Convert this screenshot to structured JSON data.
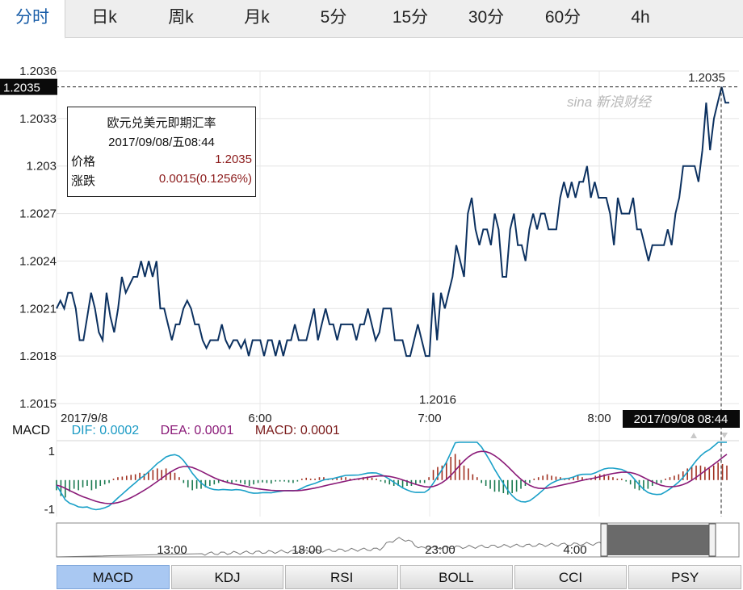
{
  "tabs": [
    {
      "label": "分时",
      "active": true
    },
    {
      "label": "日k"
    },
    {
      "label": "周k"
    },
    {
      "label": "月k"
    },
    {
      "label": "5分"
    },
    {
      "label": "15分"
    },
    {
      "label": "30分"
    },
    {
      "label": "60分"
    },
    {
      "label": "4h"
    }
  ],
  "watermark": "sina 新浪财经",
  "infobox": {
    "title": "欧元兑美元即期汇率",
    "time": "2017/09/08/五08:44",
    "price_label": "价格",
    "price_value": "1.2035",
    "change_label": "涨跌",
    "change_value": "0.0015(0.1256%)"
  },
  "macd_legend": {
    "macd": "MACD",
    "dif": "DIF: 0.0002",
    "dea": "DEA: 0.0001",
    "hist": "MACD: 0.0001"
  },
  "indicator_tabs": [
    {
      "label": "MACD",
      "active": true
    },
    {
      "label": "KDJ"
    },
    {
      "label": "RSI"
    },
    {
      "label": "BOLL"
    },
    {
      "label": "CCI"
    },
    {
      "label": "PSY"
    }
  ],
  "colors": {
    "line": "#0c3160",
    "dif": "#1aa0c8",
    "dea": "#8a1a78",
    "pos": "#a03020",
    "neg": "#1a7a50"
  },
  "chart_data": {
    "type": "line",
    "ylim": [
      1.2015,
      1.2036
    ],
    "ytick_labels": [
      "1.2036",
      "1.2033",
      "1.203",
      "1.2027",
      "1.2024",
      "1.2021",
      "1.2018",
      "1.2015"
    ],
    "xtick_labels": [
      "2017/9/8",
      "6:00",
      "7:00",
      "8:00"
    ],
    "crosshair_price": "1.2035",
    "crosshair_time": "2017/09/08 08:44",
    "high_label": "1.2035",
    "low_label": "1.2016",
    "series": [
      {
        "values": [
          1.2021,
          1.20215,
          1.2021,
          1.2022,
          1.2022,
          1.2021,
          1.2019,
          1.2019,
          1.20205,
          1.2022,
          1.2021,
          1.20195,
          1.2019,
          1.2022,
          1.20205,
          1.20195,
          1.2021,
          1.2023,
          1.2022,
          1.20225,
          1.2023,
          1.2023,
          1.2024,
          1.2023,
          1.2024,
          1.2023,
          1.2024,
          1.2021,
          1.2021,
          1.202,
          1.2019,
          1.202,
          1.202,
          1.2021,
          1.20215,
          1.2021,
          1.202,
          1.202,
          1.2019,
          1.20185,
          1.2019,
          1.2019,
          1.2019,
          1.202,
          1.2019,
          1.20185,
          1.2019,
          1.2019,
          1.20185,
          1.2019,
          1.2018,
          1.2019,
          1.2019,
          1.2019,
          1.2018,
          1.2019,
          1.2019,
          1.2018,
          1.2019,
          1.2018,
          1.2019,
          1.2019,
          1.202,
          1.2019,
          1.2019,
          1.2019,
          1.202,
          1.2021,
          1.2019,
          1.202,
          1.2021,
          1.202,
          1.202,
          1.2019,
          1.202,
          1.202,
          1.202,
          1.202,
          1.2019,
          1.202,
          1.202,
          1.2021,
          1.202,
          1.2019,
          1.20195,
          1.2021,
          1.2021,
          1.2021,
          1.2019,
          1.2019,
          1.2019,
          1.2018,
          1.2018,
          1.2019,
          1.202,
          1.2019,
          1.2018,
          1.2018,
          1.2022,
          1.2019,
          1.2022,
          1.2021,
          1.2022,
          1.2023,
          1.2025,
          1.2024,
          1.2023,
          1.2027,
          1.2028,
          1.2026,
          1.2025,
          1.2026,
          1.2026,
          1.2025,
          1.2027,
          1.2026,
          1.2023,
          1.2023,
          1.2026,
          1.2027,
          1.2025,
          1.2025,
          1.2024,
          1.2026,
          1.2027,
          1.2026,
          1.2027,
          1.2027,
          1.2026,
          1.2026,
          1.2026,
          1.2028,
          1.2029,
          1.2028,
          1.2029,
          1.2028,
          1.2029,
          1.2029,
          1.203,
          1.2028,
          1.2029,
          1.2028,
          1.2028,
          1.2028,
          1.2027,
          1.2025,
          1.2028,
          1.2027,
          1.2027,
          1.2027,
          1.2028,
          1.2026,
          1.2026,
          1.2025,
          1.2024,
          1.2025,
          1.2025,
          1.2025,
          1.2025,
          1.2026,
          1.2025,
          1.2027,
          1.2028,
          1.203,
          1.203,
          1.203,
          1.203,
          1.2029,
          1.2031,
          1.2034,
          1.2031,
          1.2033,
          1.2034,
          1.2035,
          1.2034,
          1.2034
        ]
      }
    ]
  },
  "macd_data": {
    "ylim": [
      -1.2,
      1.3
    ],
    "ytick_labels": [
      "1",
      "-1"
    ],
    "hist": [
      -0.35,
      -0.55,
      -0.6,
      -0.4,
      -0.3,
      -0.35,
      -0.25,
      -0.2,
      -0.35,
      -0.3,
      -0.2,
      -0.15,
      -0.1,
      0.05,
      0.1,
      0.12,
      0.15,
      0.18,
      0.2,
      0.25,
      0.22,
      0.3,
      0.35,
      0.4,
      0.35,
      0.4,
      0.3,
      0.25,
      0.1,
      -0.1,
      -0.25,
      -0.35,
      -0.3,
      -0.3,
      -0.25,
      -0.2,
      -0.15,
      -0.1,
      -0.05,
      -0.1,
      -0.1,
      -0.05,
      -0.1,
      -0.15,
      -0.2,
      -0.15,
      -0.1,
      -0.08,
      -0.1,
      -0.12,
      -0.05,
      -0.05,
      -0.05,
      -0.08,
      -0.1,
      -0.05,
      0.05,
      0.08,
      0.05,
      0.05,
      0.1,
      0.1,
      0.05,
      0.05,
      0.08,
      0.1,
      0.1,
      0.05,
      0.05,
      0.05,
      0.1,
      0.12,
      0.08,
      0.05,
      -0.05,
      -0.1,
      -0.15,
      -0.2,
      -0.2,
      -0.25,
      -0.2,
      -0.2,
      -0.15,
      -0.1,
      -0.1,
      0.1,
      0.35,
      0.45,
      0.5,
      0.6,
      0.8,
      0.9,
      0.7,
      0.5,
      0.4,
      0.2,
      0.1,
      -0.1,
      -0.2,
      -0.3,
      -0.4,
      -0.4,
      -0.45,
      -0.5,
      -0.45,
      -0.4,
      -0.3,
      -0.2,
      -0.1,
      0.05,
      0.1,
      0.15,
      0.2,
      0.15,
      0.12,
      0.1,
      0.05,
      0.05,
      0.1,
      0.15,
      0.1,
      0.05,
      0.05,
      0.15,
      0.2,
      0.2,
      0.15,
      0.1,
      0.05,
      0.05,
      -0.05,
      -0.15,
      -0.3,
      -0.35,
      -0.35,
      -0.3,
      -0.2,
      -0.15,
      -0.1,
      0.05,
      0.1,
      0.15,
      0.2,
      0.3,
      0.4,
      0.45,
      0.5,
      0.5,
      0.45,
      0.4,
      0.5,
      0.6,
      0.55,
      0.5
    ]
  },
  "navigator": {
    "labels": [
      "13:00",
      "18:00",
      "23:00",
      "4:00"
    ]
  }
}
